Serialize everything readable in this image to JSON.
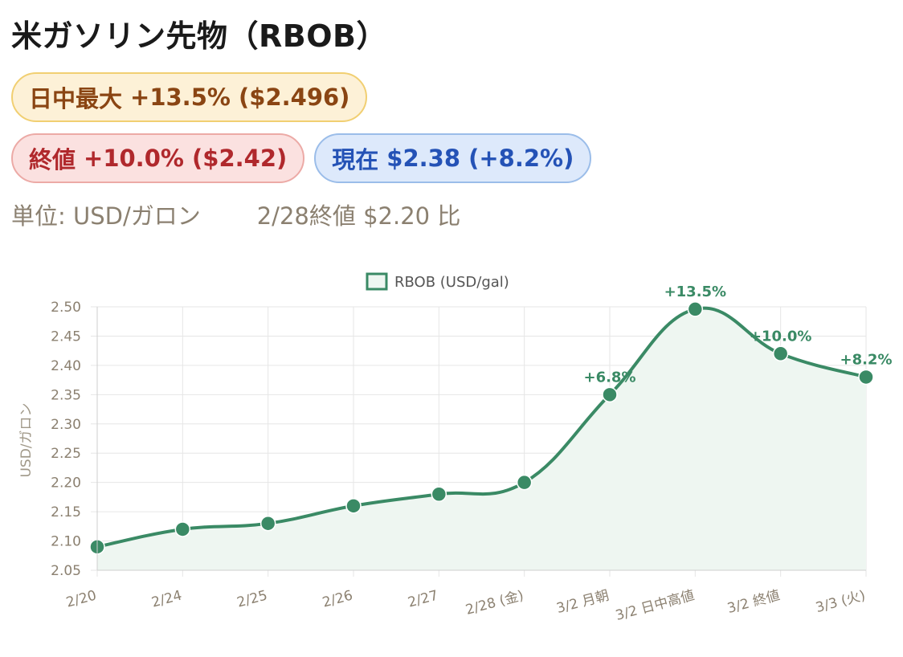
{
  "header": {
    "title": "米ガソリン先物（RBOB）"
  },
  "badges": {
    "high": {
      "label": "日中最大",
      "value": "+13.5% ($2.496)"
    },
    "close": {
      "label": "終値",
      "value": "+10.0% ($2.42)"
    },
    "now": {
      "label": "現在",
      "value": "$2.38 (+8.2%)"
    }
  },
  "info": {
    "unit": "単位: USD/ガロン",
    "basis": "2/28終値 $2.20 比"
  },
  "colors": {
    "line": "#3a8a65",
    "fill": "#eef6f1",
    "grid": "#e6e6e6",
    "tick": "#8b8070"
  },
  "chart_data": {
    "type": "line",
    "categories": [
      "2/20",
      "2/24",
      "2/25",
      "2/26",
      "2/27",
      "2/28 (金)",
      "3/2 月朝",
      "3/2 日中高値",
      "3/2 終値",
      "3/3 (火)"
    ],
    "series": [
      {
        "name": "RBOB (USD/gal)",
        "values": [
          2.09,
          2.12,
          2.13,
          2.16,
          2.18,
          2.2,
          2.35,
          2.496,
          2.42,
          2.38
        ],
        "annotations": [
          "",
          "",
          "",
          "",
          "",
          "",
          "+6.8%",
          "+13.5%",
          "+10.0%",
          "+8.2%"
        ]
      }
    ],
    "ylabel": "USD/ガロン",
    "ylim": [
      2.05,
      2.5
    ],
    "yticks": [
      "2.50",
      "2.45",
      "2.40",
      "2.35",
      "2.30",
      "2.25",
      "2.20",
      "2.15",
      "2.10",
      "2.05"
    ],
    "grid": true,
    "area_fill": true,
    "legend_position": "top-center"
  }
}
